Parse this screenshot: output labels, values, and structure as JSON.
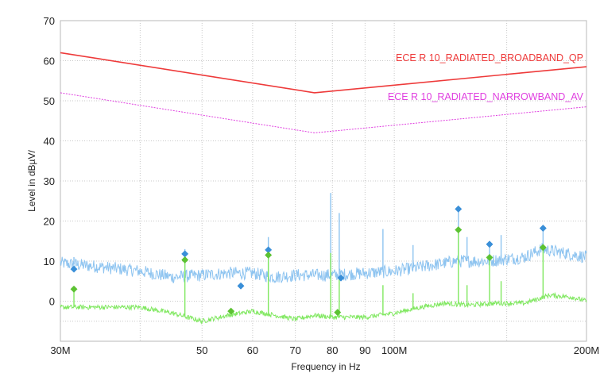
{
  "chart_data": {
    "type": "line",
    "title": "",
    "xlabel": "Frequency in Hz",
    "ylabel": "Level in dBµV/",
    "x_scale": "log",
    "xlim": [
      30000000,
      200000000
    ],
    "ylim": [
      -10,
      70
    ],
    "x_ticks": [
      {
        "value": 30000000,
        "label": "30M"
      },
      {
        "value": 50000000,
        "label": "50"
      },
      {
        "value": 60000000,
        "label": "60"
      },
      {
        "value": 70000000,
        "label": "70"
      },
      {
        "value": 80000000,
        "label": "80"
      },
      {
        "value": 90000000,
        "label": "90"
      },
      {
        "value": 100000000,
        "label": "100M"
      },
      {
        "value": 200000000,
        "label": "200M"
      }
    ],
    "x_minor_gridlines": [
      40000000,
      150000000
    ],
    "y_ticks": [
      0,
      10,
      20,
      30,
      40,
      50,
      60,
      70
    ],
    "grid": true,
    "colors": {
      "broadband_limit": "#ee3a3a",
      "narrowband_limit": "#e040e0",
      "peak_trace": "#8ec4f0",
      "average_trace": "#80e860",
      "peak_markers": "#3a8fd8",
      "average_markers": "#5cc232"
    },
    "series": [
      {
        "name": "ECE R 10_RADIATED_BROADBAND_QP",
        "kind": "limit",
        "points": [
          [
            30000000,
            62
          ],
          [
            75000000,
            52
          ],
          [
            200000000,
            58.5
          ]
        ]
      },
      {
        "name": "ECE R 10_RADIATED_NARROWBAND_AV",
        "kind": "limit",
        "points": [
          [
            30000000,
            52
          ],
          [
            75000000,
            42
          ],
          [
            200000000,
            48.5
          ]
        ]
      },
      {
        "kind": "peak-trace",
        "baseline": [
          [
            30000000,
            9.5
          ],
          [
            35000000,
            8.5
          ],
          [
            40000000,
            7.5
          ],
          [
            45000000,
            6
          ],
          [
            50000000,
            6.5
          ],
          [
            55000000,
            7
          ],
          [
            60000000,
            7
          ],
          [
            65000000,
            6
          ],
          [
            70000000,
            6.5
          ],
          [
            80000000,
            6.5
          ],
          [
            90000000,
            7
          ],
          [
            100000000,
            7.5
          ],
          [
            110000000,
            8.5
          ],
          [
            125000000,
            10
          ],
          [
            140000000,
            10
          ],
          [
            160000000,
            11
          ],
          [
            170000000,
            13
          ],
          [
            185000000,
            12
          ],
          [
            200000000,
            11
          ]
        ],
        "spikes": [
          [
            31500000,
            11
          ],
          [
            47000000,
            13
          ],
          [
            63500000,
            16
          ],
          [
            79500000,
            27
          ],
          [
            82000000,
            22
          ],
          [
            96000000,
            18
          ],
          [
            107000000,
            14
          ],
          [
            126000000,
            22.5
          ],
          [
            130000000,
            16
          ],
          [
            141000000,
            15
          ],
          [
            147000000,
            16.5
          ],
          [
            171000000,
            19
          ]
        ]
      },
      {
        "kind": "average-trace",
        "baseline": [
          [
            30000000,
            -1.5
          ],
          [
            35000000,
            -1.5
          ],
          [
            40000000,
            -1.5
          ],
          [
            45000000,
            -3
          ],
          [
            50000000,
            -5
          ],
          [
            55000000,
            -3.5
          ],
          [
            60000000,
            -2.5
          ],
          [
            65000000,
            -3.5
          ],
          [
            70000000,
            -4.5
          ],
          [
            75000000,
            -3.5
          ],
          [
            80000000,
            -4
          ],
          [
            90000000,
            -4
          ],
          [
            100000000,
            -3
          ],
          [
            110000000,
            -1.5
          ],
          [
            120000000,
            -0.5
          ],
          [
            130000000,
            -1
          ],
          [
            145000000,
            -0.5
          ],
          [
            160000000,
            -0.5
          ],
          [
            175000000,
            1.5
          ],
          [
            190000000,
            1
          ],
          [
            200000000,
            0
          ]
        ],
        "spikes": [
          [
            31500000,
            3
          ],
          [
            47000000,
            10
          ],
          [
            63500000,
            11
          ],
          [
            79500000,
            12
          ],
          [
            82000000,
            6
          ],
          [
            96000000,
            4
          ],
          [
            107000000,
            2
          ],
          [
            126000000,
            17.5
          ],
          [
            130000000,
            4
          ],
          [
            141000000,
            11
          ],
          [
            147000000,
            5
          ],
          [
            171000000,
            13
          ]
        ]
      }
    ],
    "peak_markers": [
      [
        31500000,
        8
      ],
      [
        47000000,
        11.8
      ],
      [
        57500000,
        3.8
      ],
      [
        63500000,
        12.8
      ],
      [
        82500000,
        5.8
      ],
      [
        126000000,
        23
      ],
      [
        141000000,
        14.2
      ],
      [
        171000000,
        18.2
      ]
    ],
    "average_markers": [
      [
        31500000,
        3
      ],
      [
        47000000,
        10.3
      ],
      [
        55500000,
        -2.5
      ],
      [
        63500000,
        11.5
      ],
      [
        81500000,
        -2.8
      ],
      [
        126000000,
        17.8
      ],
      [
        141000000,
        10.9
      ],
      [
        171000000,
        13.4
      ]
    ]
  }
}
